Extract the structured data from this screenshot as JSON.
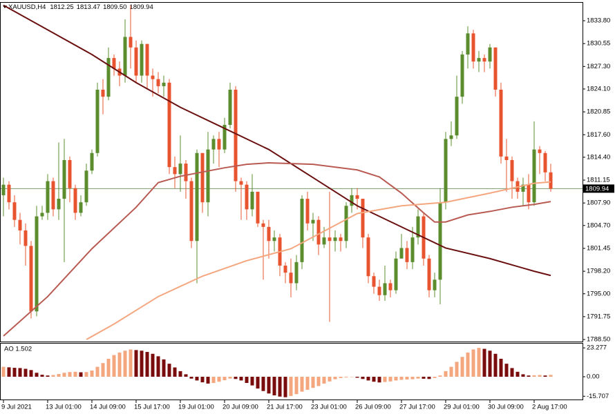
{
  "chart_data": [
    {
      "type": "candlestick",
      "header": {
        "symbol": "XAUUSD,H4",
        "ohlc": [
          "1812.25",
          "1813.47",
          "1809.50",
          "1809.94"
        ]
      },
      "categories": [
        "9 Jul 2021",
        null,
        null,
        null,
        null,
        null,
        null,
        null,
        "13 Jul 01:00",
        null,
        null,
        null,
        null,
        null,
        null,
        null,
        "14 Jul 09:00",
        null,
        null,
        null,
        null,
        null,
        null,
        null,
        "15 Jul 17:00",
        null,
        null,
        null,
        null,
        null,
        null,
        null,
        "19 Jul 01:00",
        null,
        null,
        null,
        null,
        null,
        null,
        null,
        "20 Jul 09:00",
        null,
        null,
        null,
        null,
        null,
        null,
        null,
        "21 Jul 17:00",
        null,
        null,
        null,
        null,
        null,
        null,
        null,
        "23 Jul 01:00",
        null,
        null,
        null,
        null,
        null,
        null,
        null,
        "26 Jul 09:00",
        null,
        null,
        null,
        null,
        null,
        null,
        null,
        "27 Jul 17:00",
        null,
        null,
        null,
        null,
        null,
        null,
        null,
        "29 Jul 01:00",
        null,
        null,
        null,
        null,
        null,
        null,
        null,
        "30 Jul 09:00",
        null,
        null,
        null,
        null,
        null,
        null,
        null,
        "2 Aug 17:00",
        null,
        null,
        null
      ],
      "open": [
        1809.0,
        1810.5,
        1808.0,
        1805.5,
        1804.0,
        1801.8,
        1792.5,
        1806.0,
        1806.5,
        1811.0,
        1807.0,
        1808.5,
        1814.0,
        1810.0,
        1806.5,
        1808.0,
        1812.5,
        1815.0,
        1824.0,
        1823.0,
        1828.5,
        1827.0,
        1826.0,
        1831.5,
        1830.0,
        1826.0,
        1830.5,
        1826.0,
        1825.5,
        1824.5,
        1825.0,
        1813.0,
        1812.0,
        1813.5,
        1811.0,
        1802.5,
        1815.0,
        1808.0,
        1815.5,
        1817.0,
        1815.5,
        1819.0,
        1824.0,
        1811.0,
        1810.5,
        1807.0,
        1809.5,
        1805.0,
        1804.5,
        1802.5,
        1803.0,
        1799.0,
        1798.0,
        1796.5,
        1799.5,
        1808.5,
        1805.0,
        1805.5,
        1802.0,
        1803.0,
        1802.5,
        1803.0,
        1802.5,
        1807.5,
        1809.0,
        1808.5,
        1803.0,
        1797.5,
        1796.0,
        1794.8,
        1796.5,
        1795.5,
        1800.0,
        1801.5,
        1799.5,
        1803.0,
        1806.0,
        1800.0,
        1795.5,
        1797.0,
        1808.0,
        1817.0,
        1817.5,
        1823.0,
        1829.0,
        1832.0,
        1828.0,
        1828.5,
        1828.0,
        1830.0,
        1824.0,
        1814.5,
        1814.0,
        1811.0,
        1809.5,
        1810.5,
        1808.0,
        1815.5,
        1815.0,
        1812.25
      ],
      "high": [
        1811.5,
        1811.0,
        1809.0,
        1806.5,
        1805.0,
        1802.5,
        1807.5,
        1807.5,
        1812.0,
        1811.5,
        1816.5,
        1817.0,
        1814.5,
        1810.5,
        1809.0,
        1813.5,
        1815.5,
        1825.0,
        1825.5,
        1830.0,
        1829.0,
        1828.0,
        1834.0,
        1836.0,
        1831.0,
        1831.0,
        1830.5,
        1827.0,
        1826.5,
        1826.0,
        1825.5,
        1814.5,
        1817.5,
        1814.0,
        1811.5,
        1815.5,
        1815.0,
        1818.0,
        1817.5,
        1818.0,
        1820.0,
        1825.0,
        1824.5,
        1811.5,
        1811.0,
        1812.0,
        1809.5,
        1805.5,
        1805.5,
        1804.0,
        1803.5,
        1799.5,
        1800.0,
        1800.5,
        1809.0,
        1809.5,
        1806.5,
        1806.0,
        1804.5,
        1809.5,
        1804.0,
        1803.5,
        1808.0,
        1810.0,
        1810.0,
        1808.5,
        1803.5,
        1798.0,
        1797.0,
        1799.0,
        1797.0,
        1801.0,
        1803.5,
        1802.5,
        1804.5,
        1807.0,
        1806.5,
        1800.5,
        1798.0,
        1810.0,
        1818.0,
        1819.5,
        1826.0,
        1829.5,
        1833.0,
        1832.5,
        1829.5,
        1829.0,
        1830.5,
        1830.0,
        1825.0,
        1817.0,
        1814.5,
        1811.5,
        1811.5,
        1812.0,
        1819.5,
        1816.0,
        1815.3,
        1813.47
      ],
      "low": [
        1806.0,
        1807.0,
        1804.5,
        1802.0,
        1799.0,
        1791.5,
        1791.8,
        1805.5,
        1805.5,
        1806.0,
        1805.5,
        1799.5,
        1808.0,
        1805.5,
        1806.0,
        1807.5,
        1812.0,
        1814.5,
        1820.5,
        1822.5,
        1826.0,
        1824.5,
        1825.0,
        1827.0,
        1825.0,
        1825.0,
        1824.0,
        1823.0,
        1823.5,
        1823.0,
        1812.0,
        1810.0,
        1809.5,
        1808.5,
        1801.5,
        1796.5,
        1806.5,
        1806.0,
        1813.5,
        1813.0,
        1815.0,
        1818.5,
        1809.5,
        1805.5,
        1805.5,
        1806.0,
        1804.5,
        1797.0,
        1800.0,
        1801.0,
        1797.5,
        1796.5,
        1794.5,
        1795.5,
        1798.5,
        1804.0,
        1802.5,
        1800.5,
        1801.5,
        1791.0,
        1801.0,
        1801.0,
        1801.5,
        1806.5,
        1807.0,
        1801.5,
        1796.5,
        1795.0,
        1794.0,
        1794.0,
        1794.5,
        1795.0,
        1800.0,
        1798.5,
        1798.5,
        1802.0,
        1799.0,
        1794.5,
        1794.5,
        1793.5,
        1807.0,
        1816.0,
        1817.0,
        1822.0,
        1827.0,
        1827.0,
        1826.5,
        1826.5,
        1827.0,
        1823.0,
        1813.5,
        1809.5,
        1808.5,
        1808.5,
        1807.5,
        1807.0,
        1807.5,
        1812.0,
        1811.0,
        1809.5
      ],
      "close": [
        1810.5,
        1808.0,
        1805.5,
        1804.0,
        1801.8,
        1792.5,
        1806.0,
        1806.5,
        1811.0,
        1807.0,
        1808.5,
        1814.0,
        1810.0,
        1806.5,
        1808.0,
        1812.5,
        1815.0,
        1824.0,
        1823.0,
        1828.5,
        1827.0,
        1826.0,
        1831.5,
        1830.0,
        1826.0,
        1830.5,
        1826.0,
        1825.5,
        1824.5,
        1825.0,
        1813.0,
        1812.0,
        1813.5,
        1811.0,
        1802.5,
        1815.0,
        1808.0,
        1815.5,
        1817.0,
        1815.5,
        1819.0,
        1824.0,
        1811.0,
        1810.5,
        1807.0,
        1809.5,
        1805.0,
        1804.5,
        1802.5,
        1803.0,
        1799.0,
        1798.0,
        1796.5,
        1799.5,
        1808.5,
        1805.0,
        1805.5,
        1802.0,
        1803.0,
        1802.5,
        1803.0,
        1802.5,
        1807.5,
        1809.0,
        1808.5,
        1803.0,
        1797.5,
        1796.0,
        1794.8,
        1796.5,
        1795.5,
        1800.0,
        1801.5,
        1799.5,
        1803.0,
        1806.0,
        1800.0,
        1795.5,
        1797.0,
        1808.0,
        1817.0,
        1817.5,
        1823.0,
        1829.0,
        1832.0,
        1828.0,
        1828.5,
        1828.0,
        1830.0,
        1824.0,
        1814.5,
        1814.0,
        1811.0,
        1809.5,
        1810.5,
        1808.0,
        1815.5,
        1815.0,
        1812.25,
        1809.94
      ],
      "up_color": "#5b8c2e",
      "down_color": "#e8542f",
      "ylim": [
        1788.21,
        1836.45
      ],
      "yticks": [
        {
          "value": 1833.8,
          "label": "1833.80"
        },
        1830.55,
        {
          "value": 1827.3,
          "label": "1827.30"
        },
        {
          "value": 1824.1,
          "label": "1824.10"
        },
        1820.85,
        {
          "value": 1817.6,
          "label": "1817.60"
        },
        {
          "value": 1814.4,
          "label": "1814.40"
        },
        1811.15,
        {
          "value": 1807.9,
          "label": "1807.90"
        },
        {
          "value": 1804.7,
          "label": "1804.70"
        },
        1801.45,
        {
          "value": 1798.2,
          "label": "1798.20"
        },
        {
          "value": 1795,
          "label": "1795.00"
        },
        1791.75,
        {
          "value": 1788.5,
          "label": "1788.50"
        }
      ],
      "price_line": {
        "value": 1809.94,
        "label": "1809.94"
      },
      "price_line_color": "#7a9a6a",
      "lines": [
        {
          "color": "#6b1010",
          "x": [
            0,
            8,
            16,
            24,
            32,
            40,
            48,
            56,
            64,
            72,
            80,
            88,
            96,
            99
          ],
          "values": [
            1836.0,
            1832.5,
            1829.0,
            1825.0,
            1821.5,
            1818.5,
            1815.5,
            1811.5,
            1807.5,
            1804.5,
            1801.5,
            1800.0,
            1798.2,
            1797.6
          ]
        },
        {
          "color": "#b85a52",
          "x": [
            0,
            8,
            16,
            24,
            28,
            32,
            40,
            44,
            48,
            56,
            64,
            68,
            72,
            76,
            78,
            80,
            84,
            88,
            92,
            96,
            99
          ],
          "values": [
            1789.0,
            1794.6,
            1801.4,
            1807.3,
            1810.8,
            1811.7,
            1812.9,
            1813.4,
            1813.6,
            1813.4,
            1812.6,
            1811.6,
            1809.3,
            1806.5,
            1805.2,
            1805.2,
            1806.2,
            1806.7,
            1807.3,
            1807.7,
            1808.1
          ]
        },
        {
          "color": "#f4a67e",
          "x": [
            15,
            20,
            28,
            36,
            44,
            52,
            58,
            64,
            72,
            80,
            88,
            96,
            99
          ],
          "values": [
            1788.5,
            1790.7,
            1794.6,
            1797.5,
            1799.7,
            1801.4,
            1803.9,
            1806.4,
            1807.5,
            1808.0,
            1809.3,
            1810.7,
            1810.9
          ]
        }
      ]
    },
    {
      "type": "bar",
      "label": "AO 1.502",
      "values": [
        8.0,
        7.6,
        7.2,
        7.0,
        6.4,
        5.4,
        3.2,
        1.6,
        1.0,
        1.4,
        2.2,
        3.2,
        3.8,
        4.0,
        3.6,
        3.8,
        5.0,
        8.0,
        11.0,
        14.5,
        17.5,
        19.5,
        21.0,
        22.0,
        21.5,
        21.0,
        20.0,
        18.5,
        16.5,
        14.0,
        10.5,
        7.5,
        4.5,
        2.0,
        -1.5,
        -3.0,
        -4.5,
        -5.5,
        -5.0,
        -4.0,
        -2.8,
        -1.5,
        -1.8,
        -3.0,
        -5.0,
        -7.0,
        -9.5,
        -11.5,
        -13.5,
        -15.0,
        -16.0,
        -16.5,
        -15.5,
        -14.0,
        -12.0,
        -10.5,
        -9.0,
        -7.5,
        -5.5,
        -3.8,
        -2.0,
        -1.0,
        -0.5,
        -0.2,
        -0.8,
        -1.8,
        -3.0,
        -4.0,
        -4.6,
        -4.2,
        -3.8,
        -3.0,
        -2.5,
        -2.2,
        -2.0,
        -1.5,
        -1.6,
        -1.8,
        -1.0,
        1.0,
        4.5,
        8.0,
        12.0,
        16.0,
        19.5,
        22.0,
        23.277,
        22.5,
        21.0,
        18.5,
        14.5,
        10.5,
        7.0,
        4.0,
        2.0,
        1.0,
        1.2,
        1.4,
        1.0,
        1.502
      ],
      "up_color": "#f4a67e",
      "down_color": "#7a0c0c",
      "ylim": [
        -18.9,
        26.7
      ],
      "yticks": [
        23.277,
        {
          "value": 0,
          "label": "0.00"
        },
        -15.707
      ]
    }
  ]
}
